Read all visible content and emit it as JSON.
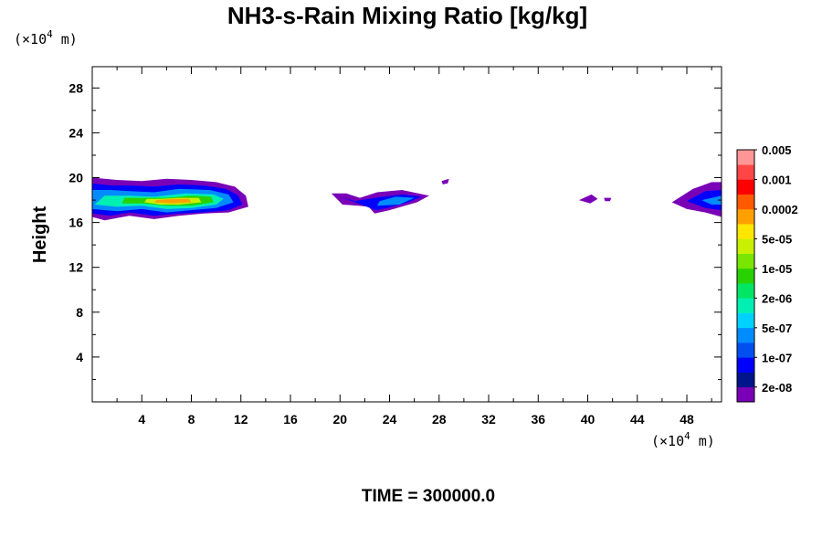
{
  "chart_data": {
    "type": "heatmap",
    "title": "NH3-s-Rain Mixing Ratio [kg/kg]",
    "ylabel": "Height",
    "xlabel": "",
    "y_unit": "(×10",
    "y_unit_exp": "4",
    "y_unit_tail": " m)",
    "x_unit": "(×10",
    "x_unit_exp": "4",
    "x_unit_tail": " m)",
    "xlim": [
      0,
      50.8
    ],
    "ylim": [
      0,
      29.9
    ],
    "x_ticks": [
      "4",
      "8",
      "12",
      "16",
      "20",
      "24",
      "28",
      "32",
      "36",
      "40",
      "44",
      "48"
    ],
    "x_tick_values": [
      4,
      8,
      12,
      16,
      20,
      24,
      28,
      32,
      36,
      40,
      44,
      48
    ],
    "y_ticks": [
      "4",
      "8",
      "12",
      "16",
      "20",
      "24",
      "28"
    ],
    "y_tick_values": [
      4,
      8,
      12,
      16,
      20,
      24,
      28
    ],
    "colorbar": {
      "colors": [
        "#7a00b8",
        "#00148c",
        "#0000ff",
        "#0050f0",
        "#008cff",
        "#00d2ff",
        "#00f0b4",
        "#00e664",
        "#28d200",
        "#78e600",
        "#c8f000",
        "#ffe600",
        "#ffa000",
        "#ff5a00",
        "#ff0000",
        "#ff4646",
        "#ff9696"
      ],
      "labels": [
        "2e-08",
        "1e-07",
        "5e-07",
        "2e-06",
        "1e-05",
        "5e-05",
        "0.0002",
        "0.001",
        "0.005"
      ]
    },
    "regions": [
      {
        "name": "cloud-left",
        "layers": [
          {
            "level": 0,
            "polygon": [
              [
                0,
                16.5
              ],
              [
                1,
                16.2
              ],
              [
                3,
                16.6
              ],
              [
                5,
                16.3
              ],
              [
                7,
                16.6
              ],
              [
                9,
                16.8
              ],
              [
                11,
                16.9
              ],
              [
                12.6,
                17.4
              ],
              [
                12.4,
                18.4
              ],
              [
                11.5,
                19.2
              ],
              [
                10,
                19.6
              ],
              [
                8,
                19.8
              ],
              [
                6,
                19.9
              ],
              [
                4,
                19.7
              ],
              [
                2,
                19.8
              ],
              [
                0,
                20.0
              ]
            ]
          },
          {
            "level": 2,
            "polygon": [
              [
                0,
                16.8
              ],
              [
                1.5,
                16.6
              ],
              [
                3,
                16.9
              ],
              [
                5,
                16.6
              ],
              [
                7,
                16.8
              ],
              [
                9,
                16.9
              ],
              [
                11,
                17.1
              ],
              [
                12.1,
                17.6
              ],
              [
                11.8,
                18.4
              ],
              [
                10.8,
                19.0
              ],
              [
                9,
                19.3
              ],
              [
                7,
                19.4
              ],
              [
                5,
                19.2
              ],
              [
                3,
                19.3
              ],
              [
                1.5,
                19.3
              ],
              [
                0,
                19.5
              ]
            ]
          },
          {
            "level": 4,
            "polygon": [
              [
                0,
                17.2
              ],
              [
                2,
                17.0
              ],
              [
                4,
                17.2
              ],
              [
                6,
                16.9
              ],
              [
                8,
                17.1
              ],
              [
                10,
                17.3
              ],
              [
                11.4,
                17.8
              ],
              [
                11,
                18.5
              ],
              [
                9.5,
                18.9
              ],
              [
                7,
                19.0
              ],
              [
                5,
                18.7
              ],
              [
                3,
                18.8
              ],
              [
                1.5,
                18.9
              ],
              [
                0,
                18.9
              ]
            ]
          },
          {
            "level": 6,
            "polygon": [
              [
                0.2,
                17.6
              ],
              [
                2,
                17.4
              ],
              [
                4,
                17.5
              ],
              [
                6,
                17.2
              ],
              [
                8,
                17.3
              ],
              [
                10,
                17.6
              ],
              [
                10.6,
                18.1
              ],
              [
                9.8,
                18.5
              ],
              [
                7.5,
                18.6
              ],
              [
                5,
                18.3
              ],
              [
                3,
                18.4
              ],
              [
                1,
                18.4
              ]
            ]
          },
          {
            "level": 8,
            "polygon": [
              [
                2.4,
                17.7
              ],
              [
                4,
                17.7
              ],
              [
                6,
                17.5
              ],
              [
                8,
                17.5
              ],
              [
                9.8,
                17.8
              ],
              [
                9.6,
                18.3
              ],
              [
                8,
                18.4
              ],
              [
                6,
                18.2
              ],
              [
                4,
                18.2
              ],
              [
                2.6,
                18.2
              ]
            ]
          },
          {
            "level": 10,
            "polygon": [
              [
                4.2,
                17.8
              ],
              [
                5.5,
                17.6
              ],
              [
                7,
                17.6
              ],
              [
                8.8,
                17.8
              ],
              [
                8.6,
                18.2
              ],
              [
                7,
                18.2
              ],
              [
                5.5,
                18.1
              ],
              [
                4.4,
                18.1
              ]
            ]
          },
          {
            "level": 12,
            "polygon": [
              [
                5,
                17.8
              ],
              [
                6.5,
                17.7
              ],
              [
                8,
                17.8
              ],
              [
                7.8,
                18.1
              ],
              [
                6.5,
                18.1
              ],
              [
                5.2,
                18.0
              ]
            ]
          }
        ]
      },
      {
        "name": "cloud-center",
        "layers": [
          {
            "level": 0,
            "polygon": [
              [
                19.3,
                18.6
              ],
              [
                20.5,
                18.6
              ],
              [
                21.6,
                18.2
              ],
              [
                23,
                18.7
              ],
              [
                25,
                18.9
              ],
              [
                27.2,
                18.4
              ],
              [
                26.2,
                17.8
              ],
              [
                24,
                17.1
              ],
              [
                22.8,
                16.8
              ],
              [
                22.3,
                17.4
              ],
              [
                21.5,
                17.5
              ],
              [
                20.2,
                17.6
              ]
            ]
          },
          {
            "level": 2,
            "polygon": [
              [
                20,
                18.3
              ],
              [
                21.2,
                17.9
              ],
              [
                22.8,
                18.2
              ],
              [
                25,
                18.5
              ],
              [
                26.6,
                18.3
              ],
              [
                25.5,
                17.8
              ],
              [
                23.8,
                17.3
              ],
              [
                22.9,
                17.1
              ]
            ]
          },
          {
            "level": 4,
            "polygon": [
              [
                23,
                17.5
              ],
              [
                24.8,
                17.6
              ],
              [
                26,
                18.2
              ],
              [
                24.5,
                18.3
              ],
              [
                23.2,
                17.9
              ]
            ]
          },
          {
            "level": 0,
            "polygon": [
              [
                28.2,
                19.7
              ],
              [
                28.8,
                19.9
              ],
              [
                28.7,
                19.5
              ],
              [
                28.3,
                19.4
              ]
            ]
          }
        ]
      },
      {
        "name": "cloud-specks",
        "layers": [
          {
            "level": 0,
            "polygon": [
              [
                39.3,
                18.0
              ],
              [
                40.3,
                18.5
              ],
              [
                40.8,
                18.1
              ],
              [
                40.2,
                17.7
              ]
            ]
          },
          {
            "level": 0,
            "polygon": [
              [
                41.3,
                18.2
              ],
              [
                41.9,
                18.2
              ],
              [
                41.8,
                17.9
              ],
              [
                41.4,
                17.9
              ]
            ]
          }
        ]
      },
      {
        "name": "cloud-right",
        "layers": [
          {
            "level": 0,
            "polygon": [
              [
                46.8,
                17.8
              ],
              [
                48.5,
                19.0
              ],
              [
                50,
                19.6
              ],
              [
                50.8,
                19.6
              ],
              [
                50.8,
                16.5
              ],
              [
                49.5,
                16.9
              ],
              [
                48,
                17.2
              ]
            ]
          },
          {
            "level": 2,
            "polygon": [
              [
                48,
                17.9
              ],
              [
                49.5,
                18.8
              ],
              [
                50.8,
                18.9
              ],
              [
                50.8,
                17.1
              ],
              [
                49.5,
                17.3
              ]
            ]
          },
          {
            "level": 4,
            "polygon": [
              [
                49.2,
                18.0
              ],
              [
                50.8,
                18.4
              ],
              [
                50.8,
                17.6
              ],
              [
                50,
                17.6
              ]
            ]
          }
        ]
      }
    ]
  },
  "footer": {
    "time_label": "TIME = 300000.0"
  }
}
